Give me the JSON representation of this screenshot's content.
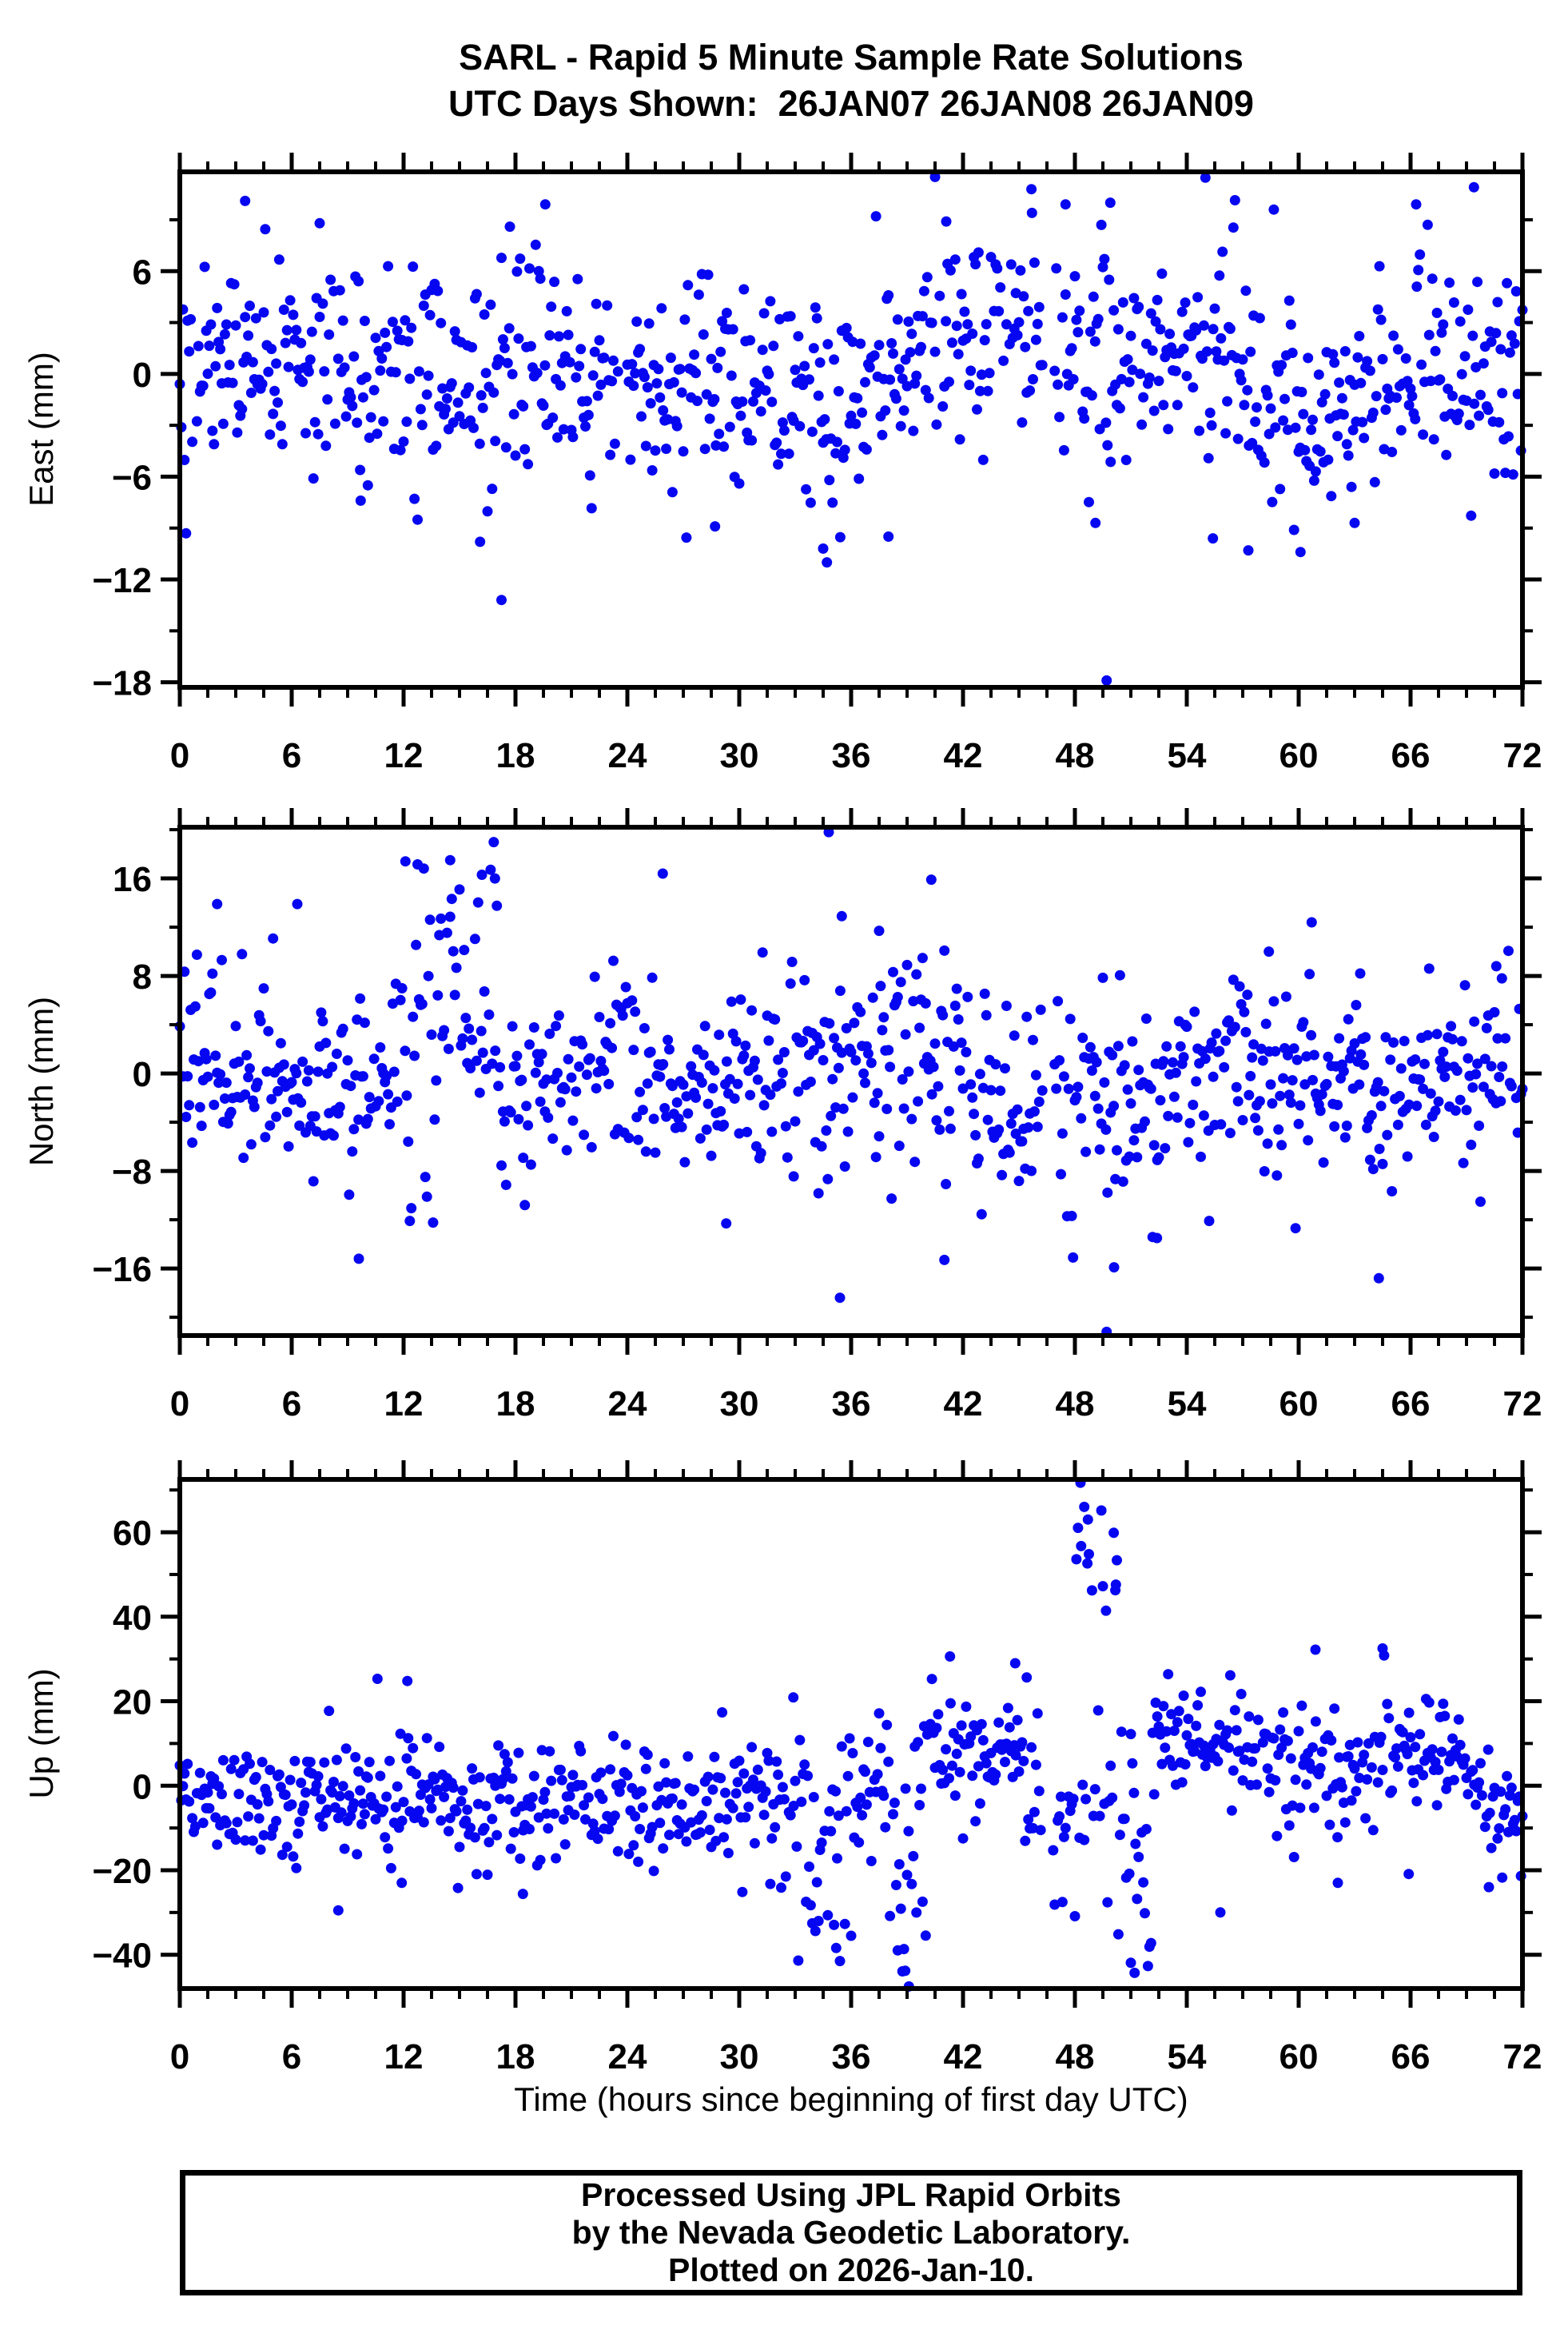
{
  "header": {
    "title": "SARL - Rapid 5 Minute Sample Rate Solutions",
    "subtitle": "UTC Days Shown:  26JAN07 26JAN08 26JAN09"
  },
  "footer": {
    "lines": [
      "Processed Using JPL Rapid Orbits",
      "by the Nevada Geodetic Laboratory.",
      "Plotted on 2026-Jan-10."
    ]
  },
  "chart_data": {
    "type": "scatter",
    "station": "SARL",
    "marker": {
      "shape": "circle",
      "color": "#0606f0",
      "radius_px": 6.5
    },
    "grid": false,
    "x": {
      "label": "Time (hours since beginning of first day UTC)",
      "lim": [
        0,
        72
      ],
      "major_ticks": [
        0,
        6,
        12,
        18,
        24,
        30,
        36,
        42,
        48,
        54,
        60,
        66,
        72
      ],
      "minor_step": 1.5,
      "sample_step_hours": 0.0833333
    },
    "panels": [
      {
        "name": "East",
        "ylabel": "East (mm)",
        "ylim": [
          -18.3,
          11.8
        ],
        "yticks": [
          {
            "v": 6,
            "label": "6"
          },
          {
            "v": 0,
            "label": "0"
          },
          {
            "v": -6,
            "label": "−6"
          },
          {
            "v": -12,
            "label": "−12"
          },
          {
            "v": -18,
            "label": "−18"
          }
        ],
        "yminor_step": 3,
        "seed": 42,
        "dropout": 0.06,
        "segments": [
          [
            0,
            4,
            0.2,
            2.9
          ],
          [
            4,
            8,
            1.0,
            3.1
          ],
          [
            8,
            12,
            -0.3,
            3.0
          ],
          [
            12,
            16,
            0.4,
            3.0
          ],
          [
            16,
            18,
            -1.2,
            4.0
          ],
          [
            18,
            22,
            0.6,
            3.1
          ],
          [
            22,
            26,
            -0.4,
            2.8
          ],
          [
            26,
            30,
            -0.8,
            3.0
          ],
          [
            30,
            33,
            -1.6,
            3.1
          ],
          [
            33,
            36,
            -2.2,
            3.4
          ],
          [
            36,
            39,
            0.6,
            3.0
          ],
          [
            39,
            42,
            2.2,
            3.2
          ],
          [
            42,
            45,
            1.6,
            2.9
          ],
          [
            45,
            48,
            1.6,
            3.2
          ],
          [
            48,
            51,
            0.2,
            3.8
          ],
          [
            51,
            54,
            1.2,
            3.0
          ],
          [
            54,
            57,
            0.4,
            3.2
          ],
          [
            57,
            60,
            -1.6,
            3.3
          ],
          [
            60,
            63,
            -2.0,
            3.0
          ],
          [
            63,
            66,
            -0.6,
            3.0
          ],
          [
            66,
            69,
            0.8,
            3.0
          ],
          [
            69,
            72.1,
            -0.2,
            3.4
          ]
        ],
        "outliers": [
          [
            3.5,
            10.1
          ],
          [
            7.5,
            8.8
          ],
          [
            19.6,
            9.9
          ],
          [
            17.7,
            8.6
          ],
          [
            40.5,
            11.5
          ],
          [
            41.1,
            8.9
          ],
          [
            45.7,
            9.4
          ],
          [
            47.5,
            9.9
          ],
          [
            49.9,
            10.0
          ],
          [
            66.3,
            9.9
          ],
          [
            69.4,
            10.9
          ],
          [
            17.25,
            -13.2
          ],
          [
            49.7,
            -17.9
          ],
          [
            34.7,
            -11.0
          ],
          [
            34.5,
            -10.2
          ],
          [
            38.0,
            -9.5
          ],
          [
            9.7,
            -7.4
          ],
          [
            49.1,
            -8.7
          ],
          [
            57.3,
            -10.3
          ],
          [
            63.0,
            -8.7
          ],
          [
            16.1,
            -9.8
          ],
          [
            28.7,
            -8.9
          ],
          [
            55.4,
            -9.6
          ],
          [
            60.1,
            -10.4
          ]
        ],
        "gaps": [
          [
            46.3,
            46.9
          ],
          [
            23.5,
            23.9
          ]
        ]
      },
      {
        "name": "North",
        "ylabel": "North (mm)",
        "ylim": [
          -21.5,
          20.2
        ],
        "yticks": [
          {
            "v": 16,
            "label": "16"
          },
          {
            "v": 8,
            "label": "8"
          },
          {
            "v": 0,
            "label": "0"
          },
          {
            "v": -8,
            "label": "−8"
          },
          {
            "v": -16,
            "label": "−16"
          }
        ],
        "yminor_step": 4,
        "seed": 1234,
        "dropout": 0.06,
        "segments": [
          [
            0,
            2,
            2.0,
            4.2
          ],
          [
            2,
            5,
            0.8,
            4.4
          ],
          [
            5,
            8,
            -1.0,
            3.6
          ],
          [
            8,
            11,
            -2.0,
            4.0
          ],
          [
            11,
            12.5,
            1.5,
            5.0
          ],
          [
            12.5,
            17,
            [
              [
                3.5,
                5.0,
                0.68
              ],
              [
                13.5,
                2.6,
                0.32
              ]
            ]
          ],
          [
            17,
            20,
            -1.8,
            4.0
          ],
          [
            20,
            23,
            -0.2,
            3.8
          ],
          [
            23,
            26,
            0.4,
            4.0
          ],
          [
            26,
            29,
            -1.2,
            3.8
          ],
          [
            29,
            32,
            -0.8,
            4.0
          ],
          [
            32,
            35,
            -0.2,
            5.0
          ],
          [
            35,
            38,
            1.2,
            4.6
          ],
          [
            38,
            41,
            0.8,
            5.0
          ],
          [
            41,
            44,
            -1.2,
            4.6
          ],
          [
            44,
            47,
            -1.6,
            4.5
          ],
          [
            47,
            50,
            -2.8,
            5.0
          ],
          [
            50,
            53,
            -1.8,
            4.6
          ],
          [
            53,
            56,
            -0.2,
            4.0
          ],
          [
            56,
            59,
            0.4,
            4.2
          ],
          [
            59,
            62,
            0.2,
            4.4
          ],
          [
            62,
            65,
            -1.2,
            4.5
          ],
          [
            65,
            68,
            0.2,
            4.0
          ],
          [
            68,
            72.1,
            0.4,
            4.4
          ]
        ],
        "outliers": [
          [
            34.8,
            19.8
          ],
          [
            12.1,
            17.4
          ],
          [
            14.5,
            17.5
          ],
          [
            16.2,
            16.3
          ],
          [
            16.9,
            16.0
          ],
          [
            25.9,
            16.4
          ],
          [
            40.3,
            15.9
          ],
          [
            2.0,
            13.9
          ],
          [
            6.3,
            13.9
          ],
          [
            14.0,
            12.7
          ],
          [
            35.5,
            12.9
          ],
          [
            37.5,
            11.7
          ],
          [
            58.4,
            10.0
          ],
          [
            60.7,
            12.4
          ],
          [
            63.3,
            8.2
          ],
          [
            67.0,
            8.6
          ],
          [
            70.6,
            8.8
          ],
          [
            70.9,
            7.8
          ],
          [
            49.7,
            -21.2
          ],
          [
            35.4,
            -18.4
          ],
          [
            9.6,
            -15.2
          ],
          [
            41.0,
            -15.3
          ],
          [
            47.9,
            -15.1
          ],
          [
            50.1,
            -15.9
          ],
          [
            64.3,
            -16.8
          ],
          [
            29.3,
            -12.3
          ],
          [
            18.5,
            -10.8
          ],
          [
            55.2,
            -12.1
          ],
          [
            52.4,
            -13.5
          ]
        ],
        "gaps": [
          [
            46.3,
            46.9
          ]
        ]
      },
      {
        "name": "Up",
        "ylabel": "Up (mm)",
        "ylim": [
          -48,
          72.5
        ],
        "yticks": [
          {
            "v": 60,
            "label": "60"
          },
          {
            "v": 40,
            "label": "40"
          },
          {
            "v": 20,
            "label": "20"
          },
          {
            "v": 0,
            "label": "0"
          },
          {
            "v": -20,
            "label": "−20"
          },
          {
            "v": -40,
            "label": "−40"
          }
        ],
        "yminor_step": 10,
        "seed": 777,
        "dropout": 0.06,
        "segments": [
          [
            0,
            3,
            -3,
            6
          ],
          [
            3,
            6,
            -4.5,
            6.5
          ],
          [
            6,
            9,
            -3,
            7.5
          ],
          [
            9,
            12,
            -4,
            8
          ],
          [
            12,
            15,
            -1.5,
            8
          ],
          [
            15,
            18,
            -4,
            8
          ],
          [
            18,
            21,
            -3.5,
            8
          ],
          [
            21,
            24,
            -2,
            7
          ],
          [
            24,
            27,
            -3.5,
            7
          ],
          [
            27,
            30,
            -4,
            7.5
          ],
          [
            30,
            33,
            -4,
            8.5
          ],
          [
            33,
            36,
            [
              [
                -7,
                9,
                0.78
              ],
              [
                -31,
                6,
                0.22
              ]
            ]
          ],
          [
            36,
            38,
            0,
            9
          ],
          [
            38,
            40,
            [
              [
                -6,
                11,
                0.6
              ],
              [
                -32,
                9,
                0.4
              ]
            ]
          ],
          [
            40,
            43,
            7,
            9
          ],
          [
            43,
            45,
            7,
            8
          ],
          [
            45,
            46.5,
            0,
            9
          ],
          [
            46.5,
            47.8,
            -12,
            9
          ],
          [
            47.8,
            50.3,
            [
              [
                50,
                6,
                0.5
              ],
              [
                -6,
                11,
                0.5
              ]
            ]
          ],
          [
            50.3,
            52.3,
            [
              [
                -18,
                12,
                0.65
              ],
              [
                5,
                8,
                0.35
              ]
            ]
          ],
          [
            52.3,
            56,
            11,
            6
          ],
          [
            56,
            59,
            8,
            7
          ],
          [
            59,
            62,
            4,
            8
          ],
          [
            62,
            64,
            2,
            7
          ],
          [
            64,
            67,
            9,
            7
          ],
          [
            67,
            69.5,
            5,
            7
          ],
          [
            69.5,
            72.1,
            -4,
            9
          ]
        ],
        "outliers": [
          [
            48.3,
            71.7
          ],
          [
            48.5,
            66
          ],
          [
            48.7,
            63
          ],
          [
            50.2,
            47.6
          ],
          [
            10.6,
            25.3
          ],
          [
            12.2,
            24.8
          ],
          [
            41.3,
            30.6
          ],
          [
            44.8,
            29
          ],
          [
            60.9,
            32.2
          ],
          [
            64.5,
            32.5
          ],
          [
            53.0,
            26.4
          ],
          [
            32.9,
            20.9
          ],
          [
            8.5,
            -29.5
          ],
          [
            18.4,
            -25.6
          ],
          [
            35.2,
            -38.4
          ],
          [
            35.4,
            -41.5
          ],
          [
            38.9,
            -43.8
          ],
          [
            39.1,
            -47.5
          ],
          [
            51.0,
            -41.9
          ],
          [
            51.2,
            -44.3
          ],
          [
            55.8,
            -30
          ],
          [
            62.1,
            -23
          ],
          [
            65.9,
            -20.9
          ],
          [
            70.2,
            -24
          ],
          [
            11.9,
            -23
          ]
        ],
        "gaps": [
          [
            46.2,
            46.8
          ]
        ]
      }
    ]
  }
}
